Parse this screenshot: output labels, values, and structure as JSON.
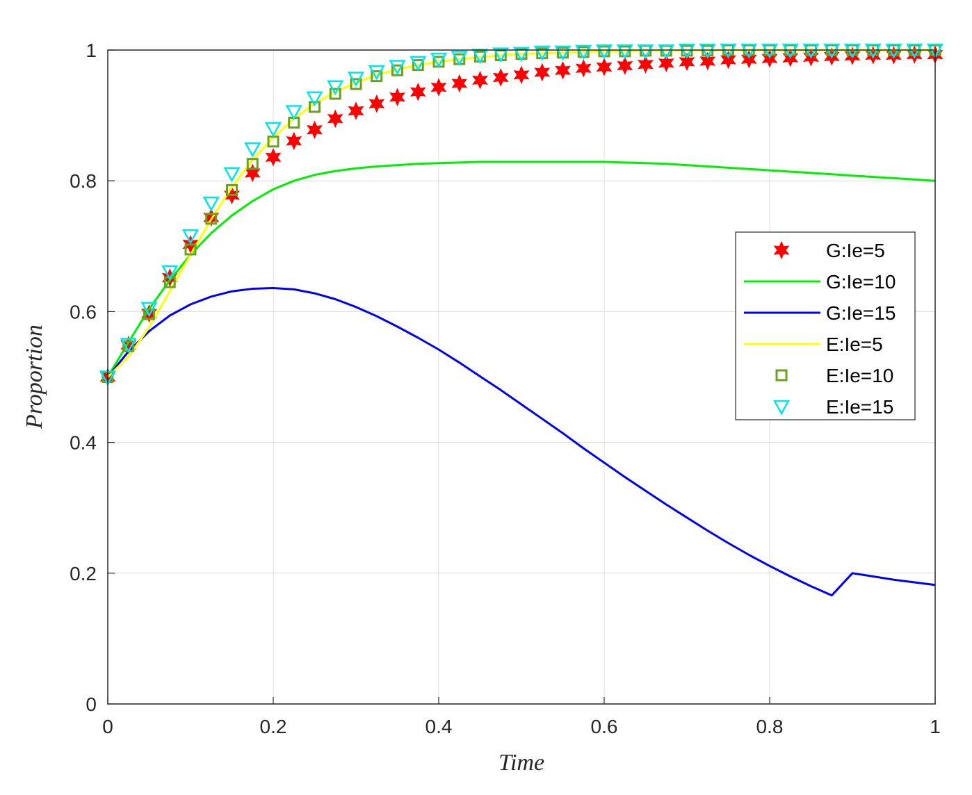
{
  "chart_data": {
    "type": "line",
    "title": "",
    "xlabel": "Time",
    "ylabel": "Proportion",
    "xlim": [
      0,
      1
    ],
    "ylim": [
      0,
      1
    ],
    "xticks": [
      "0",
      "0.2",
      "0.4",
      "0.6",
      "0.8",
      "1"
    ],
    "yticks": [
      "0",
      "0.2",
      "0.4",
      "0.6",
      "0.8",
      "1"
    ],
    "grid": true,
    "legend_position": "right-middle",
    "x": [
      0,
      0.025,
      0.05,
      0.075,
      0.1,
      0.125,
      0.15,
      0.175,
      0.2,
      0.225,
      0.25,
      0.275,
      0.3,
      0.325,
      0.35,
      0.375,
      0.4,
      0.425,
      0.45,
      0.475,
      0.5,
      0.525,
      0.55,
      0.575,
      0.6,
      0.625,
      0.65,
      0.675,
      0.7,
      0.725,
      0.75,
      0.775,
      0.8,
      0.825,
      0.85,
      0.875,
      0.9,
      0.925,
      0.95,
      0.975,
      1
    ],
    "series": [
      {
        "name": "G:Ie=5",
        "style": "marker-star",
        "color": "#ff0000",
        "values": [
          0.5,
          0.549,
          0.597,
          0.652,
          0.703,
          0.744,
          0.778,
          0.812,
          0.836,
          0.861,
          0.878,
          0.895,
          0.907,
          0.918,
          0.928,
          0.936,
          0.943,
          0.949,
          0.954,
          0.958,
          0.962,
          0.966,
          0.969,
          0.972,
          0.974,
          0.976,
          0.978,
          0.98,
          0.982,
          0.983,
          0.985,
          0.986,
          0.987,
          0.988,
          0.989,
          0.99,
          0.991,
          0.992,
          0.992,
          0.993,
          0.993
        ]
      },
      {
        "name": "G:Ie=10",
        "style": "line",
        "color": "#00ee00",
        "values": [
          0.5,
          0.553,
          0.604,
          0.648,
          0.687,
          0.72,
          0.747,
          0.769,
          0.787,
          0.8,
          0.809,
          0.815,
          0.819,
          0.822,
          0.824,
          0.826,
          0.827,
          0.828,
          0.829,
          0.829,
          0.829,
          0.829,
          0.829,
          0.829,
          0.829,
          0.828,
          0.827,
          0.826,
          0.824,
          0.822,
          0.82,
          0.818,
          0.816,
          0.814,
          0.812,
          0.81,
          0.808,
          0.806,
          0.804,
          0.802,
          0.8
        ]
      },
      {
        "name": "G:Ie=15",
        "style": "line",
        "color": "#0000ee",
        "values": [
          0.5,
          0.539,
          0.57,
          0.594,
          0.611,
          0.623,
          0.631,
          0.635,
          0.636,
          0.634,
          0.628,
          0.619,
          0.607,
          0.593,
          0.577,
          0.56,
          0.542,
          0.522,
          0.501,
          0.48,
          0.458,
          0.436,
          0.414,
          0.391,
          0.369,
          0.347,
          0.326,
          0.305,
          0.285,
          0.265,
          0.246,
          0.228,
          0.211,
          0.195,
          0.18,
          0.166,
          0.2,
          0.195,
          0.19,
          0.186,
          0.182
        ]
      },
      {
        "name": "E:Ie=5",
        "style": "line",
        "color": "#ffff00",
        "values": [
          0.5,
          0.531,
          0.576,
          0.631,
          0.687,
          0.741,
          0.79,
          0.832,
          0.866,
          0.895,
          0.918,
          0.936,
          0.95,
          0.962,
          0.97,
          0.977,
          0.982,
          0.986,
          0.989,
          0.992,
          0.994,
          0.995,
          0.996,
          0.997,
          0.998,
          0.998,
          0.999,
          0.999,
          0.999,
          0.999,
          1.0,
          1.0,
          1.0,
          1.0,
          1.0,
          1.0,
          1.0,
          1.0,
          1.0,
          1.0,
          1.0
        ]
      },
      {
        "name": "E:Ie=10",
        "style": "marker-square",
        "color": "#6aa121",
        "values": [
          0.5,
          0.547,
          0.596,
          0.645,
          0.695,
          0.742,
          0.786,
          0.826,
          0.86,
          0.889,
          0.913,
          0.933,
          0.948,
          0.96,
          0.969,
          0.977,
          0.982,
          0.986,
          0.99,
          0.992,
          0.994,
          0.995,
          0.996,
          0.997,
          0.998,
          0.998,
          0.999,
          0.999,
          0.999,
          0.999,
          1.0,
          1.0,
          1.0,
          1.0,
          1.0,
          1.0,
          1.0,
          1.0,
          1.0,
          1.0,
          1.0
        ]
      },
      {
        "name": "E:Ie=15",
        "style": "marker-triangle-down",
        "color": "#00e5ee",
        "values": [
          0.5,
          0.55,
          0.605,
          0.661,
          0.716,
          0.766,
          0.811,
          0.849,
          0.88,
          0.906,
          0.927,
          0.944,
          0.957,
          0.967,
          0.975,
          0.981,
          0.986,
          0.989,
          0.992,
          0.994,
          0.995,
          0.997,
          0.997,
          0.998,
          0.999,
          0.999,
          0.999,
          0.999,
          1.0,
          1.0,
          1.0,
          1.0,
          1.0,
          1.0,
          1.0,
          1.0,
          1.0,
          1.0,
          1.0,
          1.0,
          1.0
        ]
      }
    ]
  }
}
